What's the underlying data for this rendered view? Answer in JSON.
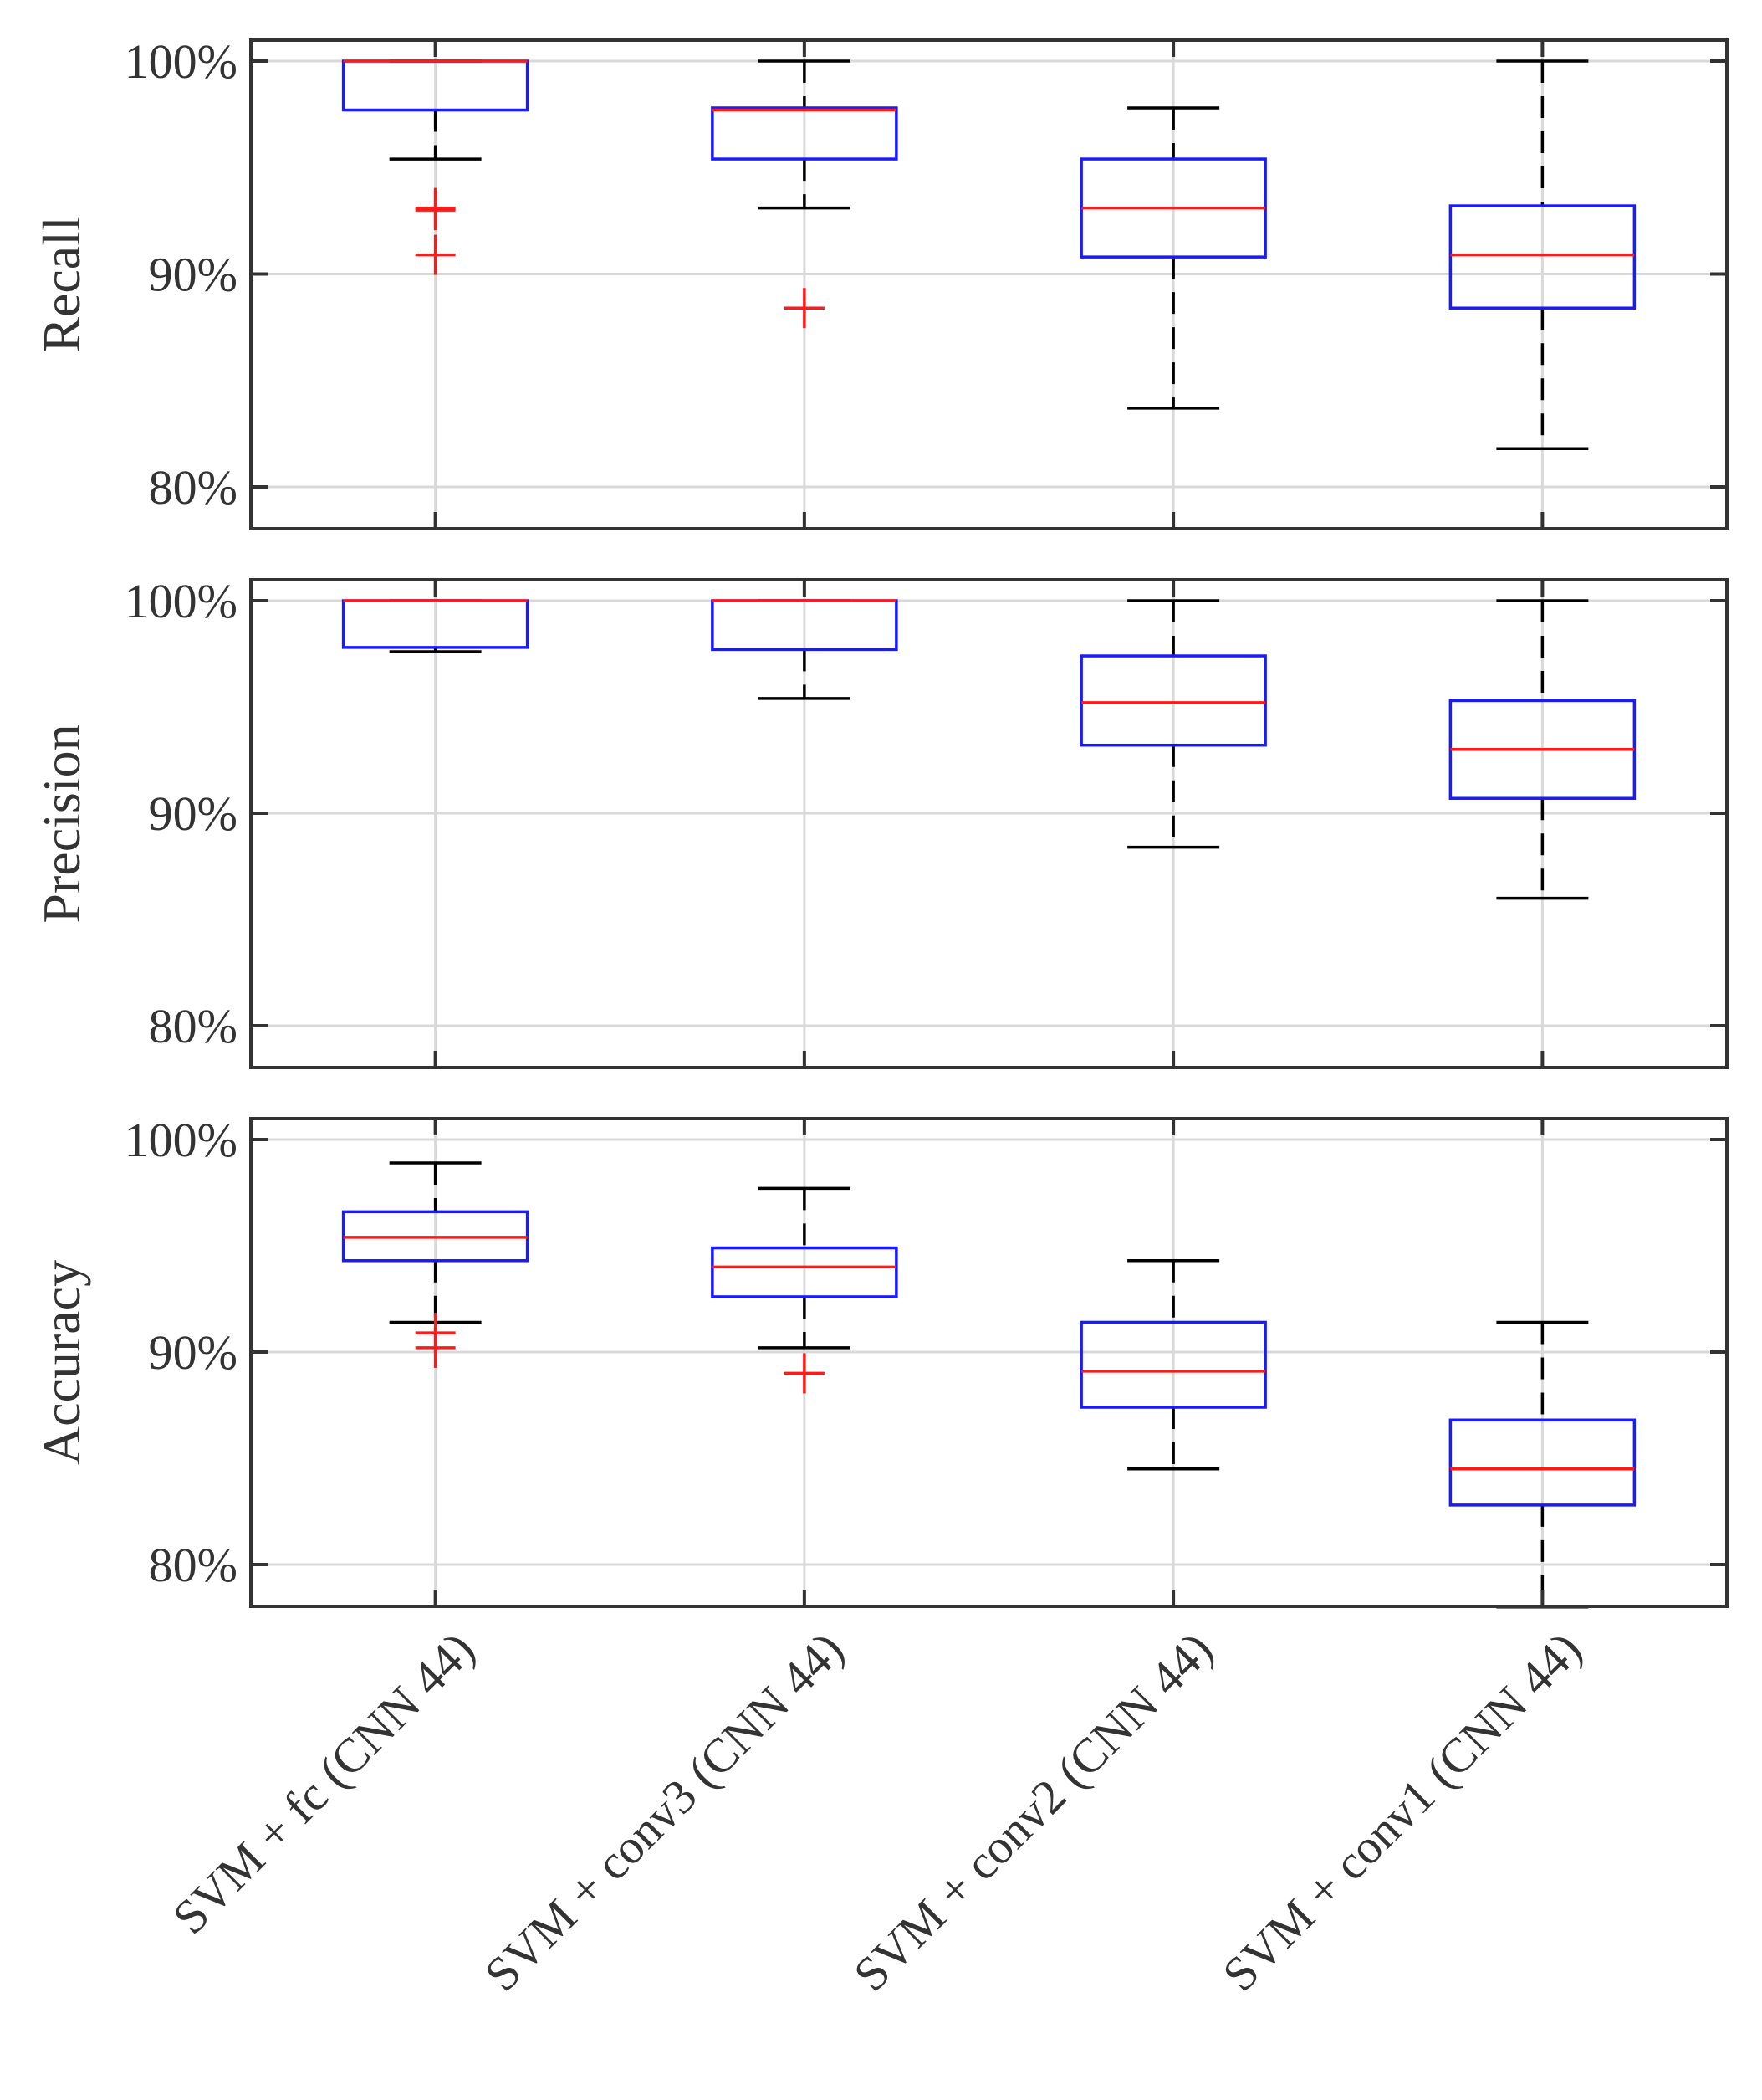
{
  "colors": {
    "box": "#1a1aff",
    "median": "#ff1a1a",
    "whisker": "#000000",
    "outlier": "#ff1a1a",
    "grid": "#d9d9d9",
    "axis": "#333333"
  },
  "chart_data": {
    "type": "boxplot",
    "categories": [
      "SVM + fc (CNN 44)",
      "SVM + conv3 (CNN 44)",
      "SVM + conv2 (CNN 44)",
      "SVM + conv1 (CNN 44)"
    ],
    "grid": true,
    "panels": [
      {
        "ylabel": "Recall",
        "yticks": [
          "80%",
          "90%",
          "100%"
        ],
        "ylim": [
          78,
          101
        ],
        "boxes": [
          {
            "q1": 97.7,
            "median": 100,
            "q3": 100,
            "whisker_low": 95.4,
            "whisker_high": 100,
            "outliers": [
              93.1,
              93.0,
              90.9
            ]
          },
          {
            "q1": 95.4,
            "median": 97.7,
            "q3": 97.8,
            "whisker_low": 93.1,
            "whisker_high": 100,
            "outliers": [
              88.4
            ]
          },
          {
            "q1": 90.8,
            "median": 93.1,
            "q3": 95.4,
            "whisker_low": 83.7,
            "whisker_high": 97.8,
            "outliers": []
          },
          {
            "q1": 88.4,
            "median": 90.9,
            "q3": 93.2,
            "whisker_low": 81.8,
            "whisker_high": 100,
            "outliers": []
          }
        ]
      },
      {
        "ylabel": "Precision",
        "yticks": [
          "80%",
          "90%",
          "100%"
        ],
        "ylim": [
          78,
          101
        ],
        "boxes": [
          {
            "q1": 97.8,
            "median": 100,
            "q3": 100,
            "whisker_low": 97.6,
            "whisker_high": 100,
            "outliers": []
          },
          {
            "q1": 97.7,
            "median": 100,
            "q3": 100,
            "whisker_low": 95.4,
            "whisker_high": 100,
            "outliers": []
          },
          {
            "q1": 93.2,
            "median": 95.2,
            "q3": 97.4,
            "whisker_low": 88.4,
            "whisker_high": 100,
            "outliers": []
          },
          {
            "q1": 90.7,
            "median": 93.0,
            "q3": 95.3,
            "whisker_low": 86.0,
            "whisker_high": 100,
            "outliers": []
          }
        ]
      },
      {
        "ylabel": "Accuracy",
        "yticks": [
          "80%",
          "90%",
          "100%"
        ],
        "ylim": [
          78,
          101
        ],
        "boxes": [
          {
            "q1": 94.3,
            "median": 95.4,
            "q3": 96.6,
            "whisker_low": 91.4,
            "whisker_high": 98.9,
            "outliers": [
              90.9,
              90.2
            ]
          },
          {
            "q1": 92.6,
            "median": 94.0,
            "q3": 94.9,
            "whisker_low": 90.2,
            "whisker_high": 97.7,
            "outliers": [
              89.0
            ]
          },
          {
            "q1": 87.4,
            "median": 89.1,
            "q3": 91.4,
            "whisker_low": 84.5,
            "whisker_high": 94.3,
            "outliers": []
          },
          {
            "q1": 82.8,
            "median": 84.5,
            "q3": 86.8,
            "whisker_low": 78.0,
            "whisker_high": 91.4,
            "outliers": []
          }
        ]
      }
    ]
  }
}
